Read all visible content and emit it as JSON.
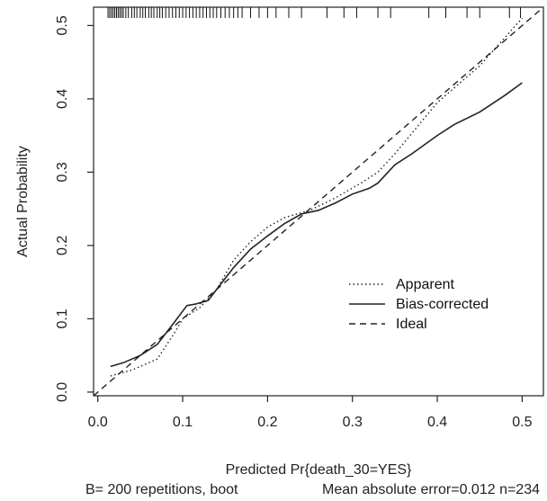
{
  "chart_data": {
    "type": "line",
    "xlabel": "Predicted Pr{death_30=YES}",
    "ylabel": "Actual Probability",
    "footer_left": "B= 200 repetitions, boot",
    "footer_right": "Mean absolute error=0.012 n=234",
    "xlim": [
      -0.005,
      0.525
    ],
    "ylim": [
      -0.005,
      0.525
    ],
    "xticks": [
      "0.0",
      "0.1",
      "0.2",
      "0.3",
      "0.4",
      "0.5"
    ],
    "yticks": [
      "0.0",
      "0.1",
      "0.2",
      "0.3",
      "0.4",
      "0.5"
    ],
    "grid": false,
    "legend_position": "right-center",
    "series": [
      {
        "name": "Apparent",
        "style": "dotted",
        "points": [
          [
            0.015,
            0.022
          ],
          [
            0.04,
            0.03
          ],
          [
            0.07,
            0.045
          ],
          [
            0.09,
            0.08
          ],
          [
            0.1,
            0.1
          ],
          [
            0.12,
            0.115
          ],
          [
            0.14,
            0.14
          ],
          [
            0.16,
            0.18
          ],
          [
            0.18,
            0.205
          ],
          [
            0.2,
            0.225
          ],
          [
            0.22,
            0.238
          ],
          [
            0.25,
            0.248
          ],
          [
            0.28,
            0.265
          ],
          [
            0.31,
            0.285
          ],
          [
            0.33,
            0.3
          ],
          [
            0.35,
            0.325
          ],
          [
            0.4,
            0.395
          ],
          [
            0.45,
            0.445
          ],
          [
            0.5,
            0.51
          ]
        ]
      },
      {
        "name": "Bias-corrected",
        "style": "solid",
        "points": [
          [
            0.015,
            0.035
          ],
          [
            0.03,
            0.04
          ],
          [
            0.05,
            0.05
          ],
          [
            0.07,
            0.065
          ],
          [
            0.09,
            0.095
          ],
          [
            0.105,
            0.118
          ],
          [
            0.115,
            0.12
          ],
          [
            0.13,
            0.125
          ],
          [
            0.14,
            0.14
          ],
          [
            0.16,
            0.17
          ],
          [
            0.18,
            0.195
          ],
          [
            0.2,
            0.213
          ],
          [
            0.22,
            0.23
          ],
          [
            0.24,
            0.243
          ],
          [
            0.26,
            0.248
          ],
          [
            0.28,
            0.258
          ],
          [
            0.3,
            0.27
          ],
          [
            0.32,
            0.278
          ],
          [
            0.33,
            0.285
          ],
          [
            0.35,
            0.31
          ],
          [
            0.37,
            0.325
          ],
          [
            0.4,
            0.35
          ],
          [
            0.42,
            0.365
          ],
          [
            0.45,
            0.382
          ],
          [
            0.48,
            0.405
          ],
          [
            0.5,
            0.422
          ]
        ]
      },
      {
        "name": "Ideal",
        "style": "dashed",
        "points": [
          [
            -0.005,
            -0.005
          ],
          [
            0.525,
            0.525
          ]
        ]
      }
    ],
    "rug_x": [
      0.012,
      0.014,
      0.016,
      0.018,
      0.02,
      0.022,
      0.024,
      0.026,
      0.028,
      0.03,
      0.033,
      0.036,
      0.04,
      0.043,
      0.046,
      0.05,
      0.053,
      0.056,
      0.06,
      0.063,
      0.066,
      0.07,
      0.073,
      0.076,
      0.08,
      0.084,
      0.088,
      0.092,
      0.096,
      0.1,
      0.104,
      0.108,
      0.112,
      0.116,
      0.12,
      0.124,
      0.128,
      0.132,
      0.136,
      0.14,
      0.145,
      0.15,
      0.155,
      0.16,
      0.165,
      0.17,
      0.18,
      0.19,
      0.2,
      0.21,
      0.225,
      0.24,
      0.27,
      0.29,
      0.305,
      0.33,
      0.345,
      0.39,
      0.41,
      0.435,
      0.45,
      0.485,
      0.498
    ]
  }
}
